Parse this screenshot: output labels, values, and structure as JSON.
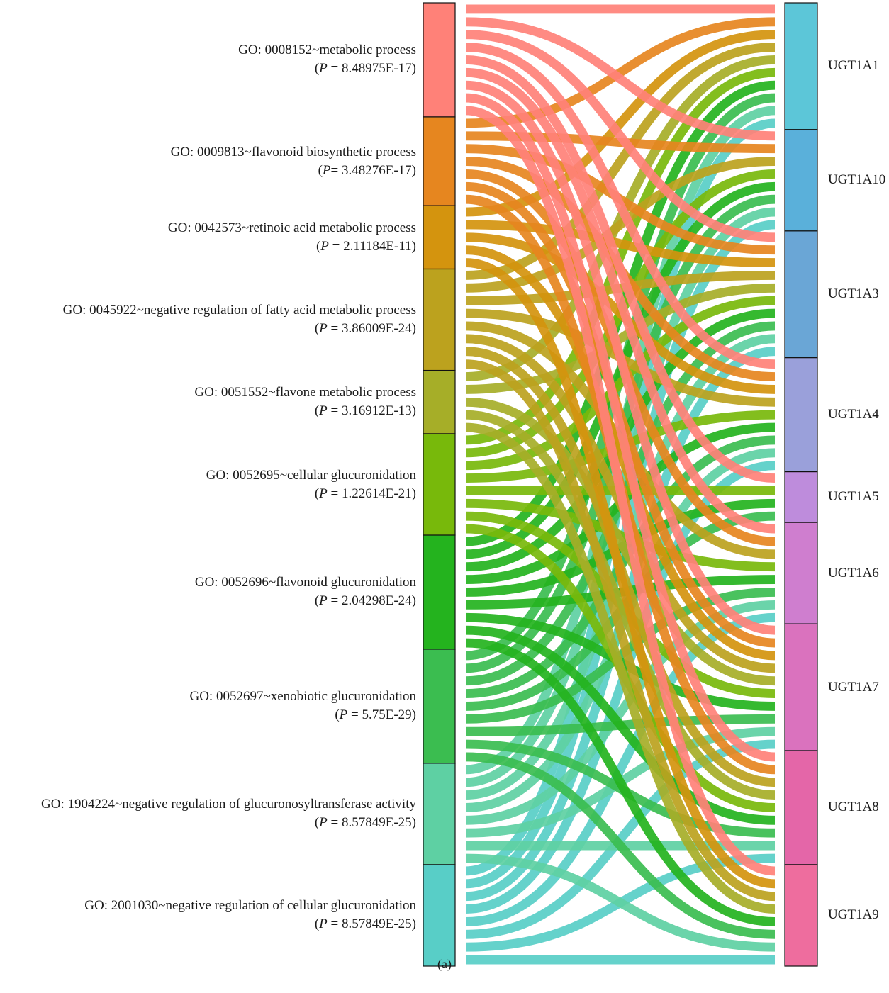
{
  "chart_data": {
    "type": "sankey",
    "caption": "(a)",
    "terms": [
      {
        "id": "GO: 0008152~metabolic process",
        "p_prefix": "P",
        "p_sep": " = ",
        "p_value": "8.48975E-17",
        "color": "#F8766D",
        "genes": [
          "UGT1A1",
          "UGT1A10",
          "UGT1A3",
          "UGT1A4",
          "UGT1A5",
          "UGT1A6",
          "UGT1A7",
          "UGT1A8",
          "UGT1A9"
        ]
      },
      {
        "id": "GO: 0009813~flavonoid biosynthetic process",
        "p_prefix": "P",
        "p_sep": "= ",
        "p_value": "3.48276E-17",
        "color": "#E58700",
        "genes": [
          "UGT1A1",
          "UGT1A10",
          "UGT1A3",
          "UGT1A4",
          "UGT1A6",
          "UGT1A7",
          "UGT1A8"
        ]
      },
      {
        "id": "GO: 0042573~retinoic acid metabolic process",
        "p_prefix": "P",
        "p_sep": " = ",
        "p_value": "2.11184E-11",
        "color": "#C99800",
        "genes": [
          "UGT1A1",
          "UGT1A3",
          "UGT1A4",
          "UGT1A7",
          "UGT1A9"
        ]
      },
      {
        "id": "GO: 0045922~negative regulation of fatty acid metabolic process",
        "p_prefix": "P",
        "p_sep": " = ",
        "p_value": "3.86009E-24",
        "color": "#A3A500",
        "genes": [
          "UGT1A1",
          "UGT1A10",
          "UGT1A3",
          "UGT1A4",
          "UGT1A6",
          "UGT1A7",
          "UGT1A8",
          "UGT1A9"
        ]
      },
      {
        "id": "GO: 0051552~flavone metabolic process",
        "p_prefix": "P",
        "p_sep": " = ",
        "p_value": "3.16912E-13",
        "color": "#A0A800",
        "genes": [
          "UGT1A1",
          "UGT1A3",
          "UGT1A7",
          "UGT1A8",
          "UGT1A9"
        ]
      },
      {
        "id": "GO: 0052695~cellular glucuronidation",
        "p_prefix": "P",
        "p_sep": " = ",
        "p_value": "1.22614E-21",
        "color": "#6BB100",
        "genes": [
          "UGT1A1",
          "UGT1A10",
          "UGT1A3",
          "UGT1A4",
          "UGT1A5",
          "UGT1A6",
          "UGT1A7",
          "UGT1A8"
        ]
      },
      {
        "id": "GO: 0052696~flavonoid glucuronidation",
        "p_prefix": "P",
        "p_sep": " = ",
        "p_value": "2.04298E-24",
        "color": "#00BA38",
        "genes": [
          "UGT1A1",
          "UGT1A10",
          "UGT1A3",
          "UGT1A4",
          "UGT1A5",
          "UGT1A6",
          "UGT1A7",
          "UGT1A8",
          "UGT1A9"
        ]
      },
      {
        "id": "GO: 0052697~xenobiotic glucuronidation",
        "p_prefix": "P",
        "p_sep": " = ",
        "p_value": "5.75E-29",
        "color": "#00BF7D",
        "genes": [
          "UGT1A1",
          "UGT1A10",
          "UGT1A3",
          "UGT1A4",
          "UGT1A5",
          "UGT1A6",
          "UGT1A7",
          "UGT1A8",
          "UGT1A9"
        ]
      },
      {
        "id": "GO: 1904224~negative regulation of glucuronosyltransferase activity",
        "p_prefix": "P",
        "p_sep": " = ",
        "p_value": "8.57849E-25",
        "color": "#00C1A3",
        "genes": [
          "UGT1A1",
          "UGT1A10",
          "UGT1A3",
          "UGT1A4",
          "UGT1A6",
          "UGT1A7",
          "UGT1A8",
          "UGT1A9"
        ]
      },
      {
        "id": "GO: 2001030~negative regulation of cellular glucuronidation",
        "p_prefix": "P",
        "p_sep": " = ",
        "p_value": "8.57849E-25",
        "color": "#00BFC4",
        "genes": [
          "UGT1A1",
          "UGT1A10",
          "UGT1A3",
          "UGT1A4",
          "UGT1A6",
          "UGT1A7",
          "UGT1A8",
          "UGT1A9"
        ]
      }
    ],
    "genes": [
      {
        "name": "UGT1A1",
        "color": "#5CC6D8"
      },
      {
        "name": "UGT1A10",
        "color": "#5AB0DA"
      },
      {
        "name": "UGT1A3",
        "color": "#6AA6D6"
      },
      {
        "name": "UGT1A4",
        "color": "#9AA0DA"
      },
      {
        "name": "UGT1A5",
        "color": "#BE8CDC"
      },
      {
        "name": "UGT1A6",
        "color": "#CF7ECF"
      },
      {
        "name": "UGT1A7",
        "color": "#DA72BE"
      },
      {
        "name": "UGT1A8",
        "color": "#E466A8"
      },
      {
        "name": "UGT1A9",
        "color": "#EE6D9E"
      }
    ],
    "term_colors_observed": [
      "#FF8178",
      "#E6861F",
      "#D4940E",
      "#BCA21E",
      "#A6AE28",
      "#78B90B",
      "#24B31E",
      "#3BBD50",
      "#5ED0A3",
      "#58CEC7"
    ]
  }
}
